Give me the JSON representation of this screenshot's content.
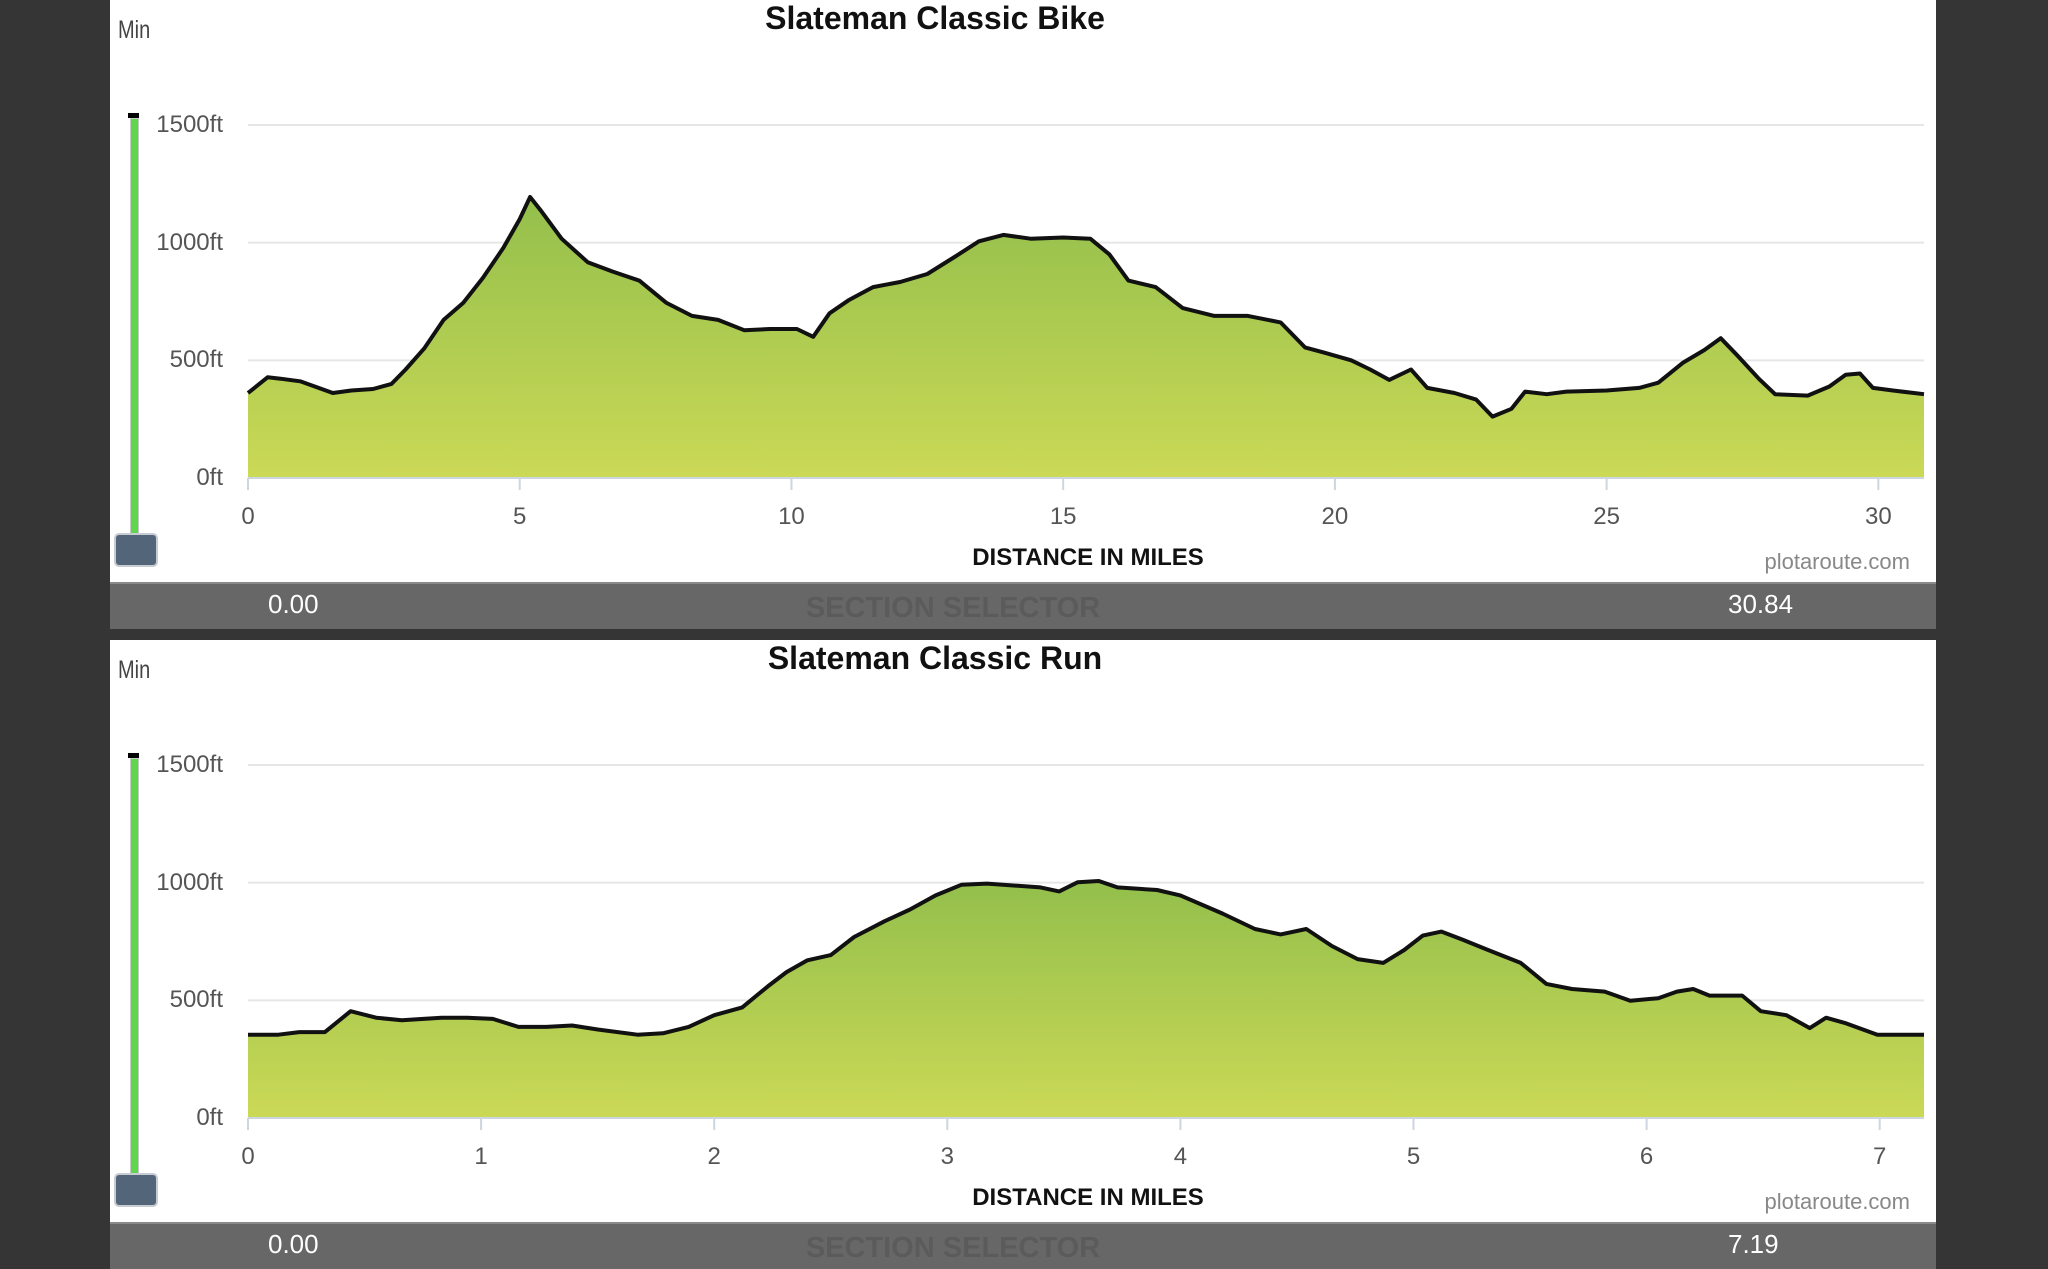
{
  "chart_data": [
    {
      "type": "area",
      "title": "Slateman Classic Bike",
      "xlabel": "DISTANCE IN MILES",
      "ylabel": "",
      "xlim": [
        0,
        30.84
      ],
      "ylim": [
        0,
        1500
      ],
      "x_ticks": [
        "0",
        "5",
        "10",
        "15",
        "20",
        "25",
        "30"
      ],
      "x_tick_values": [
        0,
        5,
        10,
        15,
        20,
        25,
        30
      ],
      "y_ticks": [
        "0ft",
        "500ft",
        "1000ft",
        "1500ft"
      ],
      "y_tick_values": [
        0,
        500,
        1000,
        1500
      ],
      "grid": true,
      "credit": "plotaroute.com",
      "slider_label": "Min",
      "selector": {
        "title": "SECTION SELECTOR",
        "min": "0.00",
        "max": "30.84"
      },
      "x": [
        0,
        0.36,
        0.6,
        0.96,
        1.3,
        1.56,
        1.9,
        2.3,
        2.64,
        2.9,
        3.24,
        3.6,
        3.96,
        4.32,
        4.7,
        5.0,
        5.19,
        5.4,
        5.77,
        6.25,
        6.7,
        7.2,
        7.7,
        8.17,
        8.65,
        9.13,
        9.6,
        10.1,
        10.4,
        10.7,
        11.05,
        11.5,
        12.0,
        12.5,
        13.0,
        13.45,
        13.9,
        14.4,
        15.0,
        15.5,
        15.85,
        16.2,
        16.7,
        17.2,
        17.78,
        18.4,
        19.0,
        19.45,
        19.8,
        20.3,
        20.65,
        21.0,
        21.4,
        21.7,
        22.2,
        22.6,
        22.9,
        23.25,
        23.5,
        23.9,
        24.26,
        25.0,
        25.6,
        25.95,
        26.4,
        26.8,
        27.1,
        27.4,
        27.8,
        28.1,
        28.7,
        29.1,
        29.4,
        29.66,
        29.9,
        30.27,
        30.84
      ],
      "y": [
        361,
        428,
        422,
        411,
        383,
        361,
        372,
        378,
        400,
        461,
        550,
        672,
        744,
        850,
        978,
        1100,
        1194,
        1133,
        1017,
        917,
        878,
        839,
        744,
        689,
        672,
        628,
        633,
        633,
        600,
        700,
        755,
        811,
        833,
        867,
        939,
        1006,
        1033,
        1017,
        1022,
        1017,
        950,
        839,
        811,
        722,
        689,
        689,
        661,
        555,
        533,
        500,
        461,
        417,
        461,
        383,
        361,
        333,
        261,
        294,
        367,
        356,
        367,
        372,
        383,
        405,
        489,
        544,
        594,
        522,
        422,
        356,
        350,
        389,
        439,
        444,
        383,
        372,
        356
      ]
    },
    {
      "type": "area",
      "title": "Slateman Classic Run",
      "xlabel": "DISTANCE IN MILES",
      "ylabel": "",
      "xlim": [
        0,
        7.19
      ],
      "ylim": [
        0,
        1500
      ],
      "x_ticks": [
        "0",
        "1",
        "2",
        "3",
        "4",
        "5",
        "6",
        "7"
      ],
      "x_tick_values": [
        0,
        1,
        2,
        3,
        4,
        5,
        6,
        7
      ],
      "y_ticks": [
        "0ft",
        "500ft",
        "1000ft",
        "1500ft"
      ],
      "y_tick_values": [
        0,
        500,
        1000,
        1500
      ],
      "grid": true,
      "credit": "plotaroute.com",
      "slider_label": "Min",
      "selector": {
        "title": "SECTION SELECTOR",
        "min": "0.00",
        "max": "7.19"
      },
      "x": [
        0,
        0.13,
        0.22,
        0.33,
        0.44,
        0.55,
        0.66,
        0.83,
        0.94,
        1.05,
        1.16,
        1.28,
        1.39,
        1.5,
        1.67,
        1.78,
        1.89,
        2.0,
        2.12,
        2.23,
        2.31,
        2.4,
        2.5,
        2.6,
        2.73,
        2.84,
        2.95,
        3.06,
        3.17,
        3.4,
        3.48,
        3.56,
        3.65,
        3.73,
        3.9,
        4.0,
        4.18,
        4.32,
        4.43,
        4.54,
        4.65,
        4.76,
        4.87,
        4.96,
        5.04,
        5.12,
        5.21,
        5.32,
        5.46,
        5.57,
        5.68,
        5.82,
        5.93,
        6.05,
        6.13,
        6.2,
        6.27,
        6.41,
        6.49,
        6.6,
        6.7,
        6.77,
        6.85,
        6.99,
        7.19
      ],
      "y": [
        354,
        354,
        365,
        365,
        454,
        426,
        415,
        426,
        426,
        421,
        387,
        387,
        393,
        376,
        354,
        360,
        387,
        437,
        470,
        559,
        620,
        670,
        692,
        769,
        836,
        886,
        946,
        991,
        996,
        980,
        963,
        1002,
        1007,
        980,
        969,
        946,
        869,
        803,
        780,
        803,
        731,
        675,
        659,
        714,
        775,
        792,
        758,
        714,
        659,
        570,
        548,
        537,
        498,
        509,
        537,
        548,
        520,
        520,
        454,
        437,
        382,
        426,
        404,
        354,
        354
      ]
    }
  ],
  "colors": {
    "line": "#111111",
    "fill_top": "#93bf4c",
    "fill_bottom": "#cbd956",
    "grid": "#e6e6e6",
    "slider": "#5ed84a",
    "handle": "#536579",
    "selector_bg": "#676767"
  }
}
